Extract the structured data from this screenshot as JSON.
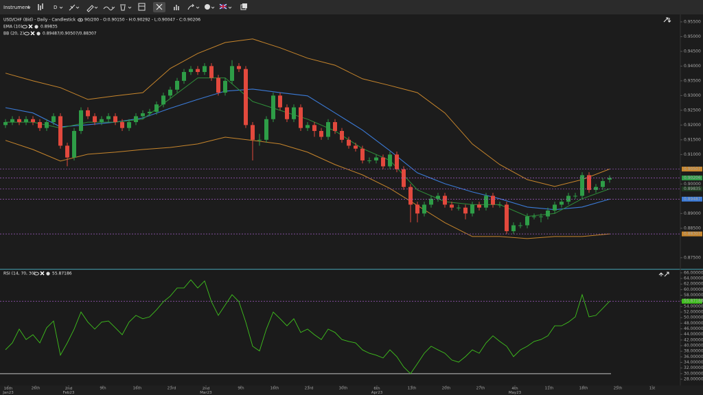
{
  "toolbar": {
    "instrument": "Instrument",
    "interval": "D"
  },
  "chart_data": [
    {
      "type": "candlestick",
      "title": "USD/CHF (Bid) - Daily - Candlestick",
      "subtitle": "90/200 - O:0.90150 - H:0.90292 - L:0.90047 - C:0.90206",
      "up_color": "#2e9d47",
      "down_color": "#e2493d",
      "xlim": [
        -0.8,
        98.2
      ],
      "xticks": [
        {
          "value": 0.4,
          "label": "16th Jan23"
        },
        {
          "value": 4.4,
          "label": "26th"
        },
        {
          "value": 9.2,
          "label": "2nd Feb23"
        },
        {
          "value": 14.2,
          "label": "9th"
        },
        {
          "value": 19.2,
          "label": "16th"
        },
        {
          "value": 24.2,
          "label": "23rd"
        },
        {
          "value": 29.2,
          "label": "2nd Mar23"
        },
        {
          "value": 34.3,
          "label": "9th"
        },
        {
          "value": 39.2,
          "label": "16th"
        },
        {
          "value": 44.2,
          "label": "23rd"
        },
        {
          "value": 49.2,
          "label": "30th"
        },
        {
          "value": 54.1,
          "label": "6th Apr23"
        },
        {
          "value": 59.2,
          "label": "13th"
        },
        {
          "value": 64.2,
          "label": "20th"
        },
        {
          "value": 69.2,
          "label": "27th"
        },
        {
          "value": 74.2,
          "label": "4th May23"
        },
        {
          "value": 79.2,
          "label": "11th"
        },
        {
          "value": 84.2,
          "label": "18th"
        },
        {
          "value": 89.2,
          "label": "25th"
        },
        {
          "value": 94.2,
          "label": "1st"
        }
      ],
      "ylim": [
        0.8717,
        0.9573
      ],
      "yticks": [
        {
          "value": 0.955,
          "label": "0.95500"
        },
        {
          "value": 0.95,
          "label": "0.95000"
        },
        {
          "value": 0.945,
          "label": "0.94500"
        },
        {
          "value": 0.94,
          "label": "0.94000"
        },
        {
          "value": 0.935,
          "label": "0.93500"
        },
        {
          "value": 0.93,
          "label": "0.93000"
        },
        {
          "value": 0.925,
          "label": "0.92500"
        },
        {
          "value": 0.92,
          "label": "0.92000"
        },
        {
          "value": 0.915,
          "label": "0.91500"
        },
        {
          "value": 0.91,
          "label": "0.91000"
        },
        {
          "value": 0.9,
          "label": "0.90000"
        },
        {
          "value": 0.89,
          "label": "0.89000"
        },
        {
          "value": 0.885,
          "label": "0.88500"
        },
        {
          "value": 0.875,
          "label": "0.87500"
        }
      ],
      "candles": [
        [
          0.92,
          0.922,
          0.919,
          0.921
        ],
        [
          0.921,
          0.923,
          0.92,
          0.922
        ],
        [
          0.922,
          0.923,
          0.92,
          0.921
        ],
        [
          0.921,
          0.923,
          0.92,
          0.922
        ],
        [
          0.922,
          0.923,
          0.92,
          0.921
        ],
        [
          0.921,
          0.922,
          0.918,
          0.919
        ],
        [
          0.919,
          0.922,
          0.918,
          0.921
        ],
        [
          0.921,
          0.924,
          0.92,
          0.923
        ],
        [
          0.923,
          0.924,
          0.912,
          0.913
        ],
        [
          0.913,
          0.914,
          0.906,
          0.909
        ],
        [
          0.909,
          0.919,
          0.908,
          0.918
        ],
        [
          0.918,
          0.926,
          0.917,
          0.925
        ],
        [
          0.925,
          0.926,
          0.922,
          0.923
        ],
        [
          0.923,
          0.924,
          0.92,
          0.921
        ],
        [
          0.921,
          0.923,
          0.92,
          0.922
        ],
        [
          0.922,
          0.924,
          0.921,
          0.923
        ],
        [
          0.923,
          0.924,
          0.92,
          0.921
        ],
        [
          0.921,
          0.922,
          0.918,
          0.919
        ],
        [
          0.919,
          0.922,
          0.918,
          0.921
        ],
        [
          0.921,
          0.924,
          0.92,
          0.923
        ],
        [
          0.923,
          0.925,
          0.922,
          0.924
        ],
        [
          0.924,
          0.9255,
          0.923,
          0.9245
        ],
        [
          0.9245,
          0.928,
          0.9235,
          0.927
        ],
        [
          0.927,
          0.931,
          0.926,
          0.93
        ],
        [
          0.93,
          0.933,
          0.929,
          0.932
        ],
        [
          0.932,
          0.936,
          0.931,
          0.935
        ],
        [
          0.935,
          0.939,
          0.934,
          0.938
        ],
        [
          0.938,
          0.94,
          0.937,
          0.939
        ],
        [
          0.939,
          0.94,
          0.937,
          0.938
        ],
        [
          0.938,
          0.941,
          0.937,
          0.94
        ],
        [
          0.94,
          0.941,
          0.935,
          0.936
        ],
        [
          0.936,
          0.937,
          0.93,
          0.931
        ],
        [
          0.931,
          0.936,
          0.93,
          0.935
        ],
        [
          0.935,
          0.942,
          0.934,
          0.94
        ],
        [
          0.94,
          0.941,
          0.938,
          0.939
        ],
        [
          0.939,
          0.94,
          0.919,
          0.92
        ],
        [
          0.92,
          0.921,
          0.908,
          0.915
        ],
        [
          0.915,
          0.917,
          0.913,
          0.915
        ],
        [
          0.915,
          0.923,
          0.914,
          0.922
        ],
        [
          0.922,
          0.931,
          0.921,
          0.93
        ],
        [
          0.93,
          0.931,
          0.925,
          0.926
        ],
        [
          0.926,
          0.927,
          0.921,
          0.922
        ],
        [
          0.922,
          0.927,
          0.921,
          0.926
        ],
        [
          0.926,
          0.927,
          0.918,
          0.919
        ],
        [
          0.919,
          0.921,
          0.918,
          0.92
        ],
        [
          0.92,
          0.921,
          0.916,
          0.918
        ],
        [
          0.918,
          0.919,
          0.915,
          0.916
        ],
        [
          0.916,
          0.922,
          0.915,
          0.921
        ],
        [
          0.921,
          0.922,
          0.917,
          0.918
        ],
        [
          0.918,
          0.919,
          0.914,
          0.915
        ],
        [
          0.915,
          0.916,
          0.912,
          0.913
        ],
        [
          0.913,
          0.914,
          0.911,
          0.912
        ],
        [
          0.912,
          0.913,
          0.907,
          0.908
        ],
        [
          0.908,
          0.909,
          0.907,
          0.908
        ],
        [
          0.908,
          0.91,
          0.907,
          0.909
        ],
        [
          0.909,
          0.91,
          0.905,
          0.906
        ],
        [
          0.906,
          0.911,
          0.905,
          0.91
        ],
        [
          0.91,
          0.911,
          0.904,
          0.905
        ],
        [
          0.905,
          0.906,
          0.898,
          0.899
        ],
        [
          0.899,
          0.9,
          0.887,
          0.893
        ],
        [
          0.893,
          0.894,
          0.887,
          0.89
        ],
        [
          0.89,
          0.894,
          0.889,
          0.893
        ],
        [
          0.893,
          0.896,
          0.892,
          0.895
        ],
        [
          0.895,
          0.897,
          0.894,
          0.896
        ],
        [
          0.896,
          0.897,
          0.892,
          0.893
        ],
        [
          0.893,
          0.894,
          0.891,
          0.892
        ],
        [
          0.892,
          0.893,
          0.891,
          0.892
        ],
        [
          0.892,
          0.893,
          0.888,
          0.89
        ],
        [
          0.89,
          0.894,
          0.889,
          0.893
        ],
        [
          0.893,
          0.894,
          0.891,
          0.892
        ],
        [
          0.892,
          0.897,
          0.891,
          0.896
        ],
        [
          0.896,
          0.897,
          0.892,
          0.893
        ],
        [
          0.893,
          0.894,
          0.892,
          0.893
        ],
        [
          0.893,
          0.894,
          0.883,
          0.884
        ],
        [
          0.884,
          0.887,
          0.883,
          0.886
        ],
        [
          0.886,
          0.887,
          0.885,
          0.886
        ],
        [
          0.886,
          0.89,
          0.885,
          0.889
        ],
        [
          0.889,
          0.89,
          0.888,
          0.889
        ],
        [
          0.889,
          0.89,
          0.887,
          0.889
        ],
        [
          0.889,
          0.892,
          0.888,
          0.891
        ],
        [
          0.891,
          0.894,
          0.89,
          0.893
        ],
        [
          0.893,
          0.895,
          0.892,
          0.894
        ],
        [
          0.894,
          0.897,
          0.893,
          0.896
        ],
        [
          0.896,
          0.897,
          0.895,
          0.896
        ],
        [
          0.896,
          0.904,
          0.895,
          0.903
        ],
        [
          0.903,
          0.904,
          0.897,
          0.898
        ],
        [
          0.898,
          0.9,
          0.897,
          0.899
        ],
        [
          0.899,
          0.902,
          0.898,
          0.901
        ],
        [
          0.9015,
          0.90292,
          0.90047,
          0.90206
        ]
      ],
      "overlay_x": [
        0,
        4,
        8,
        12,
        16,
        20,
        24,
        28,
        32,
        36,
        40,
        44,
        48,
        52,
        56,
        60,
        64,
        68,
        72,
        76,
        80,
        84,
        88
      ],
      "series": [
        {
          "name": "EMA (10)",
          "color": "#2f8f3a",
          "label_color": "#1f3d22",
          "values": [
            0.921,
            0.921,
            0.919,
            0.921,
            0.921,
            0.922,
            0.929,
            0.936,
            0.936,
            0.928,
            0.925,
            0.922,
            0.918,
            0.912,
            0.908,
            0.898,
            0.894,
            0.893,
            0.893,
            0.889,
            0.89,
            0.895,
            0.89835
          ]
        },
        {
          "name": "BB (20, 2)",
          "value_label": "0.89487/0.90507/0.88307",
          "color": "#3b7bd8",
          "band_color": "#c8862c",
          "values": [
            0.9259,
            0.9241,
            0.9194,
            0.9201,
            0.921,
            0.9224,
            0.9257,
            0.9287,
            0.9315,
            0.9322,
            0.931,
            0.9299,
            0.9241,
            0.9183,
            0.9113,
            0.9038,
            0.9001,
            0.8973,
            0.895,
            0.8922,
            0.8913,
            0.8922,
            0.89487
          ],
          "upper": [
            0.9376,
            0.935,
            0.9327,
            0.9287,
            0.9299,
            0.931,
            0.9392,
            0.9443,
            0.948,
            0.9492,
            0.9462,
            0.9427,
            0.9403,
            0.9357,
            0.9334,
            0.931,
            0.9241,
            0.9136,
            0.9066,
            0.9015,
            0.8992,
            0.9015,
            0.90507
          ],
          "lower": [
            0.9148,
            0.9117,
            0.9078,
            0.9101,
            0.9108,
            0.9117,
            0.9124,
            0.9136,
            0.9159,
            0.9148,
            0.9136,
            0.9108,
            0.9066,
            0.9031,
            0.8985,
            0.8927,
            0.8869,
            0.8822,
            0.8822,
            0.8815,
            0.8822,
            0.8822,
            0.88307
          ]
        }
      ]
    },
    {
      "type": "line",
      "title": "RSI (14, 70, 30)",
      "ylim": [
        25.8,
        67.2
      ],
      "yticks": [
        {
          "value": 66,
          "label": "66.00000"
        },
        {
          "value": 64,
          "label": "64.00000"
        },
        {
          "value": 62,
          "label": "62.00000"
        },
        {
          "value": 60,
          "label": "60.00000"
        },
        {
          "value": 58,
          "label": "58.00000"
        },
        {
          "value": 56,
          "label": "56.00000"
        },
        {
          "value": 54,
          "label": "54.00000"
        },
        {
          "value": 52,
          "label": "52.00000"
        },
        {
          "value": 50,
          "label": "50.00000"
        },
        {
          "value": 48,
          "label": "48.00000"
        },
        {
          "value": 46,
          "label": "46.00000"
        },
        {
          "value": 44,
          "label": "44.00000"
        },
        {
          "value": 42,
          "label": "42.00000"
        },
        {
          "value": 40,
          "label": "40.00000"
        },
        {
          "value": 38,
          "label": "38.00000"
        },
        {
          "value": 36,
          "label": "36.00000"
        },
        {
          "value": 34,
          "label": "34.00000"
        },
        {
          "value": 32,
          "label": "32.00000"
        },
        {
          "value": 30,
          "label": "30.00000"
        },
        {
          "value": 28,
          "label": "28.00000"
        }
      ],
      "levels": [
        30
      ],
      "level_color": "#8c8c8c",
      "series": [
        {
          "color": "#3fc21d",
          "values": [
            38.55,
            41.0,
            45.9,
            42.2,
            43.9,
            41.0,
            46.4,
            48.8,
            36.6,
            41.0,
            45.9,
            52.0,
            48.4,
            45.9,
            48.4,
            48.8,
            46.4,
            43.9,
            48.4,
            50.8,
            49.6,
            50.3,
            52.8,
            55.7,
            57.7,
            60.6,
            60.6,
            63.5,
            60.6,
            63.1,
            55.7,
            50.8,
            54.5,
            58.2,
            55.7,
            48.4,
            39.8,
            38.1,
            45.9,
            52.0,
            49.6,
            47.1,
            49.6,
            44.7,
            45.9,
            43.9,
            42.2,
            45.9,
            44.7,
            42.2,
            41.5,
            41.0,
            38.5,
            37.3,
            36.6,
            35.6,
            38.5,
            36.1,
            32.4,
            30.0,
            33.6,
            37.3,
            39.8,
            38.5,
            37.3,
            34.9,
            34.1,
            36.1,
            38.5,
            37.3,
            41.0,
            43.5,
            41.5,
            39.8,
            36.1,
            38.5,
            39.8,
            41.5,
            42.2,
            43.5,
            47.1,
            47.1,
            48.4,
            50.3,
            58.2,
            50.3,
            50.8,
            53.3,
            55.87186
          ]
        }
      ]
    }
  ]
}
